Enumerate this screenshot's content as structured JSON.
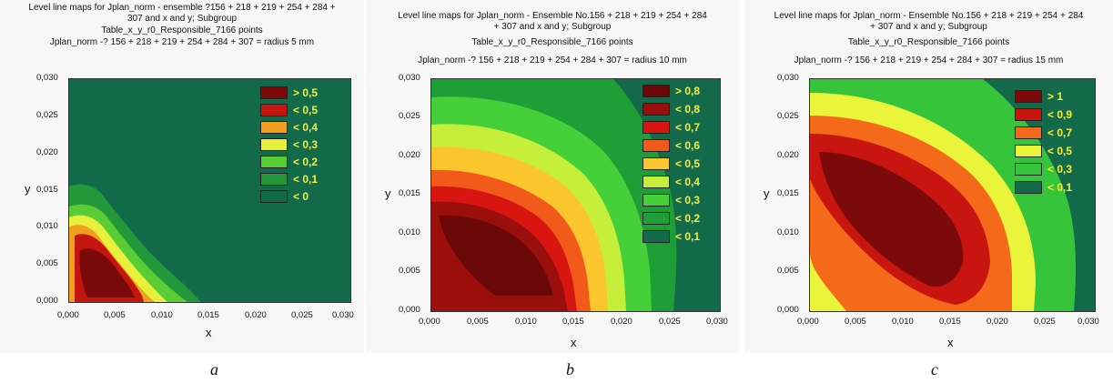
{
  "panels": [
    {
      "title_lines": [
        "Level line maps for Jplan_norm - ensemble ?156 + 218 + 219 + 254 + 284 +",
        "307 and x and y; Subgroup",
        "Table_x_y_r0_Responsible_7166 points",
        "Jplan_norm -? 156 + 218 + 219 + 254 + 284 + 307 = radius 5 mm"
      ],
      "caption": "a",
      "legend": [
        {
          "label": "> 0,5",
          "color": "#7a0a0a"
        },
        {
          "label": "< 0,5",
          "color": "#c4150f"
        },
        {
          "label": "< 0,4",
          "color": "#f0a021"
        },
        {
          "label": "< 0,3",
          "color": "#e8f03c"
        },
        {
          "label": "< 0,2",
          "color": "#5acd36"
        },
        {
          "label": "< 0,1",
          "color": "#22983a"
        },
        {
          "label": "< 0",
          "color": "#136a4b"
        }
      ]
    },
    {
      "title_lines": [
        "Level line maps for Jplan_norm - Ensemble No.156 + 218 + 219 + 254 + 284",
        "+ 307 and x and y; Subgroup",
        "Table_x_y_r0_Responsible_7166 points",
        "Jplan_norm -? 156 + 218 + 219 + 254 + 284 + 307 = radius 10 mm"
      ],
      "caption": "b",
      "legend": [
        {
          "label": "> 0,8",
          "color": "#6a0808"
        },
        {
          "label": "< 0,8",
          "color": "#9a0f0c"
        },
        {
          "label": "< 0,7",
          "color": "#d81510"
        },
        {
          "label": "< 0,6",
          "color": "#f25a1c"
        },
        {
          "label": "< 0,5",
          "color": "#fbc62d"
        },
        {
          "label": "< 0,4",
          "color": "#c6ef3c"
        },
        {
          "label": "< 0,3",
          "color": "#45d03a"
        },
        {
          "label": "< 0,2",
          "color": "#1f9e38"
        },
        {
          "label": "< 0,1",
          "color": "#136a4b"
        }
      ]
    },
    {
      "title_lines": [
        "Level line maps for Jplan_norm - Ensemble No.156 + 218 + 219 + 254 + 284",
        "+ 307 and x and y; Subgroup",
        "Table_x_y_r0_Responsible_7166 points",
        "Jplan_norm -? 156 + 218 + 219 + 254 + 284 + 307 = radius 15 mm"
      ],
      "caption": "c",
      "legend": [
        {
          "label": "> 1",
          "color": "#7c0a0a"
        },
        {
          "label": "< 0,9",
          "color": "#c8150f"
        },
        {
          "label": "< 0,7",
          "color": "#f56a1a"
        },
        {
          "label": "< 0,5",
          "color": "#e9f43a"
        },
        {
          "label": "< 0,3",
          "color": "#36c53a"
        },
        {
          "label": "< 0,1",
          "color": "#136a4b"
        }
      ]
    }
  ],
  "chart_data": [
    {
      "type": "heatmap",
      "title": "Level line maps for Jplan_norm - ensemble ?156 + 218 + 219 + 254 + 284 + 307 and x and y; Subgroup Table_x_y_r0_Responsible_7166 points Jplan_norm -? 156 + 218 + 219 + 254 + 284 + 307 = radius 5 mm",
      "xlabel": "x",
      "ylabel": "y",
      "xlim": [
        0,
        0.03
      ],
      "ylim": [
        0,
        0.03
      ],
      "xticks": [
        "0,000",
        "0,005",
        "0,010",
        "0,015",
        "0,020",
        "0,025",
        "0,030"
      ],
      "yticks": [
        "0,000",
        "0,005",
        "0,010",
        "0,015",
        "0,020",
        "0,025",
        "0,030"
      ],
      "legend": [
        "> 0,5",
        "< 0,5",
        "< 0,4",
        "< 0,3",
        "< 0,2",
        "< 0,1",
        "< 0"
      ],
      "legend_position": "top-right",
      "peak": {
        "x": 0.004,
        "y": 0.004,
        "value_class": "> 0,5"
      },
      "extent_of_nonzero_region": {
        "x_max": 0.016,
        "y_max": 0.015
      }
    },
    {
      "type": "heatmap",
      "title": "Level line maps for Jplan_norm - Ensemble No.156 + 218 + 219 + 254 + 284 + 307 and x and y; Subgroup Table_x_y_r0_Responsible_7166 points Jplan_norm -? 156 + 218 + 219 + 254 + 284 + 307 = radius 10 mm",
      "xlabel": "x",
      "ylabel": "y",
      "xlim": [
        0,
        0.03
      ],
      "ylim": [
        0,
        0.03
      ],
      "xticks": [
        "0,000",
        "0,005",
        "0,010",
        "0,015",
        "0,020",
        "0,025",
        "0,030"
      ],
      "yticks": [
        "0,000",
        "0,005",
        "0,010",
        "0,015",
        "0,020",
        "0,025",
        "0,030"
      ],
      "legend": [
        "> 0,8",
        "< 0,8",
        "< 0,7",
        "< 0,6",
        "< 0,5",
        "< 0,4",
        "< 0,3",
        "< 0,2",
        "< 0,1"
      ],
      "legend_position": "top-right",
      "peak": {
        "x": 0.007,
        "y": 0.008,
        "value_class": "> 0,8"
      },
      "extent_of_nonzero_region": {
        "x_max": 0.026,
        "y_max": 0.027
      }
    },
    {
      "type": "heatmap",
      "title": "Level line maps for Jplan_norm - Ensemble No.156 + 218 + 219 + 254 + 284 + 307 and x and y; Subgroup Table_x_y_r0_Responsible_7166 points Jplan_norm -? 156 + 218 + 219 + 254 + 284 + 307 = radius 15 mm",
      "xlabel": "x",
      "ylabel": "y",
      "xlim": [
        0,
        0.03
      ],
      "ylim": [
        0,
        0.03
      ],
      "xticks": [
        "0,000",
        "0,005",
        "0,010",
        "0,015",
        "0,020",
        "0,025",
        "0,030"
      ],
      "yticks": [
        "0,000",
        "0,005",
        "0,010",
        "0,015",
        "0,020",
        "0,025",
        "0,030"
      ],
      "legend": [
        "> 1",
        "< 0,9",
        "< 0,7",
        "< 0,5",
        "< 0,3",
        "< 0,1"
      ],
      "legend_position": "top-right",
      "peak": {
        "x": 0.008,
        "y": 0.011,
        "value_class": "> 1"
      },
      "extent_of_nonzero_region": {
        "x_max": 0.03,
        "y_max": 0.03
      }
    }
  ]
}
